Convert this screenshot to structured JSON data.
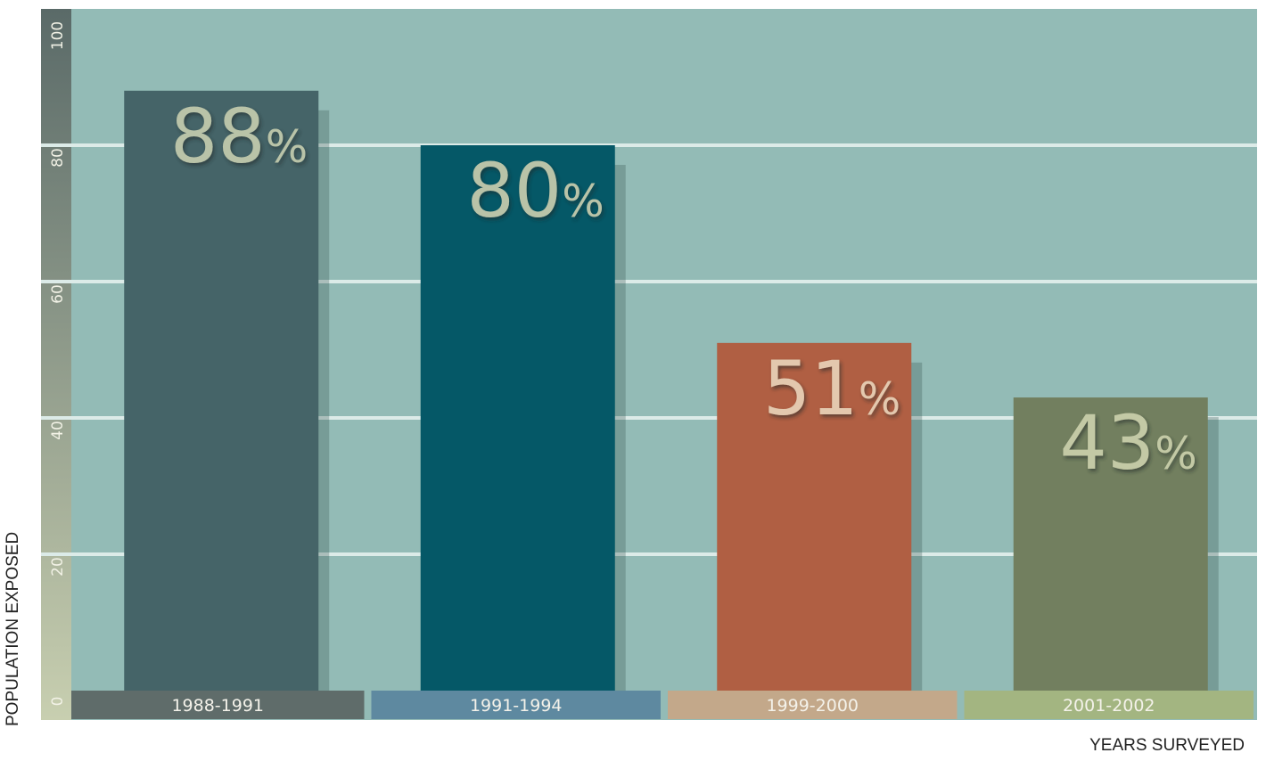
{
  "chart_data": {
    "type": "bar",
    "categories": [
      "1988-1991",
      "1991-1994",
      "1999-2000",
      "2001-2002"
    ],
    "values": [
      88,
      80,
      51,
      43
    ],
    "data_labels": [
      "88",
      "80",
      "51",
      "43"
    ],
    "unit_suffix": "%",
    "title": "",
    "xlabel": "YEARS SURVEYED",
    "ylabel": "POPULATION EXPOSED",
    "ylim": [
      0,
      100
    ],
    "yticks": [
      "0",
      "20",
      "40",
      "60",
      "80",
      "100"
    ],
    "grid": true,
    "legend": "none"
  },
  "colors": {
    "plot_background": "#93bbb6",
    "gridline": "#dcebe8",
    "bars": [
      "#456468",
      "#055867",
      "#b05f43",
      "#727f5f"
    ],
    "category_bands": [
      "#5f6c6a",
      "#5e89a0",
      "#c3a88a",
      "#a3b581"
    ],
    "axis_band_top": "#5a6a68",
    "axis_band_bottom": "#c8cfb0",
    "data_label_text": [
      "#b9c3a8",
      "#b9c3a8",
      "#e3c8ae",
      "#c3c9a5"
    ]
  }
}
